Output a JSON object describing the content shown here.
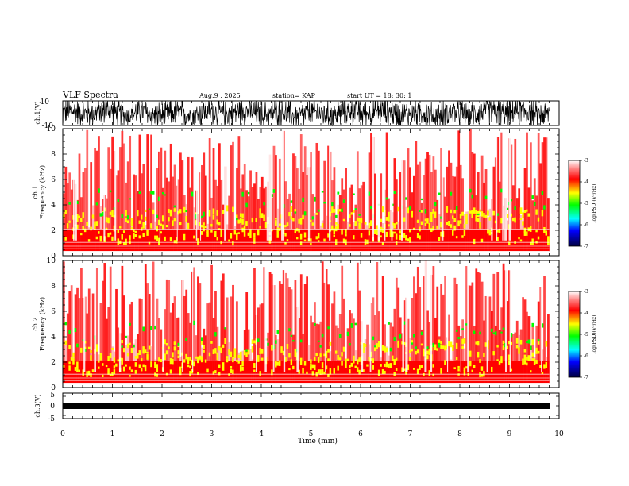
{
  "header": {
    "title": "VLF Spectra",
    "date": "Aug.9  , 2025",
    "station": "station= KAP",
    "start": "start  UT  =   18: 30: 1"
  },
  "chart_data": [
    {
      "type": "line",
      "name": "ch1-waveform",
      "ylabel": "ch.1(V)",
      "ylim": [
        -10,
        10
      ],
      "y_tick_labels": [
        "10",
        "-10"
      ],
      "xlim": [
        0,
        10
      ],
      "description_values": {
        "min": -10,
        "max": 10
      }
    },
    {
      "type": "heatmap",
      "name": "ch1-spectrogram",
      "ylabel_line1": "ch.1",
      "ylabel_line2": "Frequency  (kHz)",
      "ylim": [
        0,
        10
      ],
      "y_tick_labels": [
        "0",
        "2",
        "4",
        "6",
        "8",
        "10"
      ],
      "xlim": [
        0,
        10
      ],
      "data_extent_min": 9.8,
      "colorbar": {
        "title": "log(PSD)(V²/Hz)",
        "range": [
          -7,
          -3
        ],
        "tick_labels": [
          "-3",
          "-4",
          "-5",
          "-6",
          "-7"
        ]
      }
    },
    {
      "type": "heatmap",
      "name": "ch2-spectrogram",
      "ylabel_line1": "ch.2",
      "ylabel_line2": "Frequency  (kHz)",
      "ylim": [
        0,
        10
      ],
      "y_tick_labels": [
        "0",
        "2",
        "4",
        "6",
        "8",
        "10"
      ],
      "xlim": [
        0,
        10
      ],
      "data_extent_min": 9.8,
      "colorbar": {
        "title": "log(PSD)(V²/Hz)",
        "range": [
          -7,
          -3
        ],
        "tick_labels": [
          "-3",
          "-4",
          "-5",
          "-6",
          "-7"
        ]
      }
    },
    {
      "type": "line",
      "name": "ch3-waveform",
      "ylabel": "ch.3(V)",
      "ylim": [
        -5,
        5
      ],
      "y_tick_labels": [
        "5",
        "0",
        "-5"
      ],
      "xlim": [
        0,
        10
      ],
      "xlabel": "Time  (min)",
      "x_tick_labels": [
        "0",
        "1",
        "2",
        "3",
        "4",
        "5",
        "6",
        "7",
        "8",
        "9",
        "10"
      ]
    }
  ],
  "colors": {
    "background": "#ffffff",
    "spectrum_white": "#ffffff",
    "spectrum_red": "#ff0000",
    "spectrum_yellow": "#ffff00",
    "spectrum_green": "#00ff00",
    "spectrum_blue": "#0000ff",
    "spectrum_navy": "#000080"
  }
}
